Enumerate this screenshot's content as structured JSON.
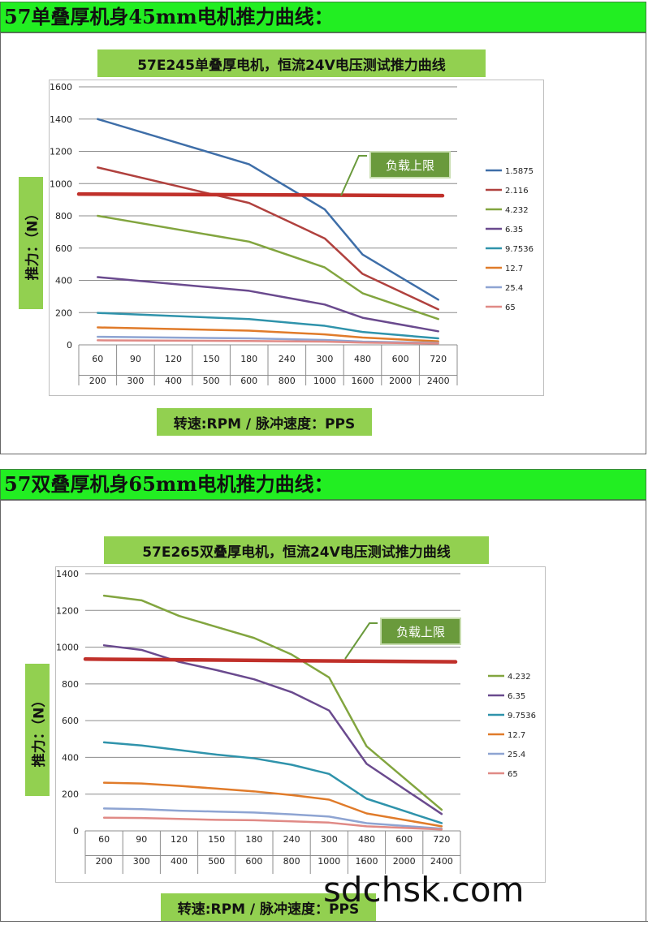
{
  "sections": [
    {
      "header": "57单叠厚机身45mm电机推力曲线：",
      "load_label": "负载上限",
      "chart_data": {
        "type": "line",
        "title": "57E245单叠厚电机，恒流24V电压测试推力曲线",
        "ylabel": "推力：（N）",
        "xlabel": "转速:RPM / 脉冲速度：PPS",
        "categories": [
          "60",
          "90",
          "120",
          "150",
          "180",
          "240",
          "300",
          "480",
          "600",
          "720"
        ],
        "categories2": [
          "200",
          "300",
          "400",
          "500",
          "600",
          "800",
          "1000",
          "1600",
          "2000",
          "2400"
        ],
        "ylim": [
          0,
          1600
        ],
        "yticks": [
          0,
          200,
          400,
          600,
          800,
          1000,
          1200,
          1400,
          1600
        ],
        "grid": true,
        "legend": "right",
        "load_limit": 935,
        "series": [
          {
            "name": "1.5875",
            "color": "#3e6ea8",
            "values": [
              1400,
              null,
              null,
              null,
              1120,
              null,
              840,
              560,
              null,
              280
            ]
          },
          {
            "name": "2.116",
            "color": "#b0413e",
            "values": [
              1100,
              null,
              null,
              null,
              880,
              null,
              660,
              440,
              null,
              220
            ]
          },
          {
            "name": "4.232",
            "color": "#82a53f",
            "values": [
              800,
              null,
              null,
              null,
              640,
              null,
              480,
              320,
              null,
              160
            ]
          },
          {
            "name": "6.35",
            "color": "#6a4a8e",
            "values": [
              420,
              null,
              null,
              null,
              335,
              null,
              250,
              168,
              null,
              84
            ]
          },
          {
            "name": "9.7536",
            "color": "#2f93ab",
            "values": [
              198,
              null,
              null,
              null,
              160,
              null,
              118,
              80,
              null,
              40
            ]
          },
          {
            "name": "12.7",
            "color": "#e07b2a",
            "values": [
              108,
              null,
              null,
              null,
              88,
              null,
              65,
              45,
              null,
              22
            ]
          },
          {
            "name": "25.4",
            "color": "#8ea4d2",
            "values": [
              50,
              null,
              null,
              null,
              40,
              null,
              30,
              20,
              null,
              12
            ]
          },
          {
            "name": "65",
            "color": "#e08a86",
            "values": [
              28,
              null,
              null,
              null,
              24,
              null,
              20,
              14,
              null,
              8
            ]
          }
        ]
      }
    },
    {
      "header": "57双叠厚机身65mm电机推力曲线：",
      "load_label": "负载上限",
      "chart_data": {
        "type": "line",
        "title": "57E265双叠厚电机，恒流24V电压测试推力曲线",
        "ylabel": "推力：（N）",
        "xlabel": "转速:RPM / 脉冲速度：PPS",
        "categories": [
          "60",
          "90",
          "120",
          "150",
          "180",
          "240",
          "300",
          "480",
          "600",
          "720"
        ],
        "categories2": [
          "200",
          "300",
          "400",
          "500",
          "600",
          "800",
          "1000",
          "1600",
          "2000",
          "2400"
        ],
        "ylim": [
          0,
          1400
        ],
        "yticks": [
          0,
          200,
          400,
          600,
          800,
          1000,
          1200,
          1400
        ],
        "grid": true,
        "legend": "right",
        "load_limit": 935,
        "series": [
          {
            "name": "4.232",
            "color": "#82a53f",
            "values": [
              1280,
              1255,
              1170,
              1110,
              1050,
              960,
              835,
              460,
              null,
              115
            ]
          },
          {
            "name": "6.35",
            "color": "#6a4a8e",
            "values": [
              1010,
              985,
              920,
              875,
              825,
              755,
              655,
              365,
              null,
              92
            ]
          },
          {
            "name": "9.7536",
            "color": "#2f93ab",
            "values": [
              482,
              465,
              440,
              415,
              395,
              360,
              310,
              175,
              null,
              42
            ]
          },
          {
            "name": "12.7",
            "color": "#e07b2a",
            "values": [
              262,
              258,
              245,
              230,
              215,
              195,
              170,
              95,
              null,
              25
            ]
          },
          {
            "name": "25.4",
            "color": "#8ea4d2",
            "values": [
              122,
              118,
              110,
              105,
              100,
              90,
              78,
              42,
              null,
              12
            ]
          },
          {
            "name": "65",
            "color": "#e08a86",
            "values": [
              72,
              70,
              65,
              60,
              58,
              52,
              45,
              25,
              null,
              8
            ]
          }
        ]
      }
    }
  ],
  "watermark": "sdchsk.com"
}
